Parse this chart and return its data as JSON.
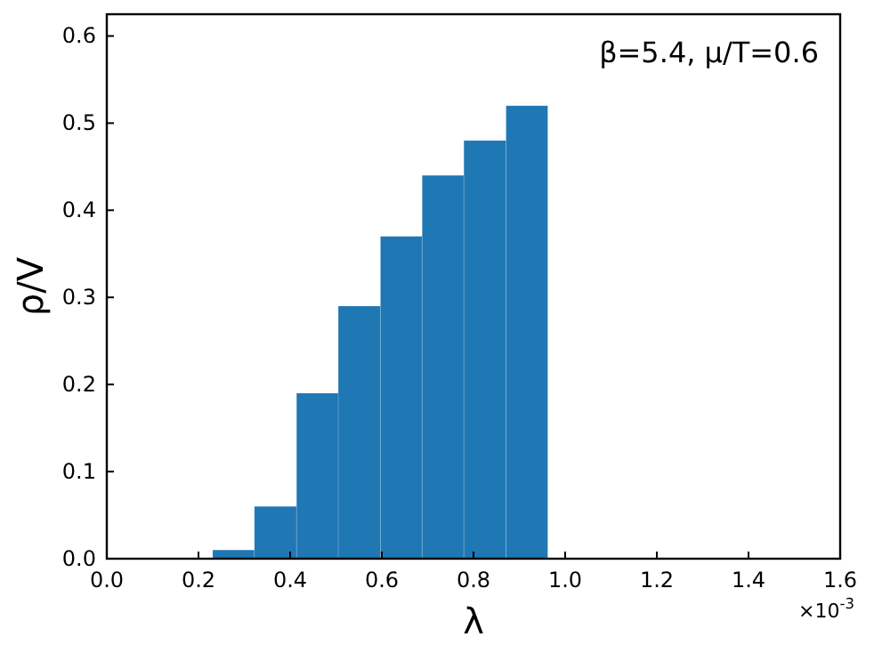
{
  "chart_data": {
    "type": "histogram",
    "xlabel": "λ",
    "ylabel": "ρ/V",
    "bins": [
      0.231,
      0.322,
      0.414,
      0.505,
      0.597,
      0.688,
      0.779,
      0.871,
      0.962
    ],
    "values": [
      0.01,
      0.06,
      0.19,
      0.29,
      0.37,
      0.44,
      0.48,
      0.52
    ],
    "color": "#1f77b4",
    "xlim": [
      0,
      1.6
    ],
    "xticks": [
      {
        "value": 0,
        "label": "0.0"
      },
      0.2,
      0.4,
      0.6,
      0.8,
      {
        "value": 1,
        "label": "1.0"
      },
      1.2,
      1.4,
      1.6
    ],
    "ylim": [
      0,
      0.625
    ],
    "yticks": [
      {
        "value": 0,
        "label": "0.0"
      },
      0.1,
      0.2,
      0.3,
      0.4,
      0.5,
      0.6
    ],
    "grid": false,
    "annotations": [
      "β=5.4, μ/T=0.6",
      "×10$^{-3}$"
    ]
  }
}
